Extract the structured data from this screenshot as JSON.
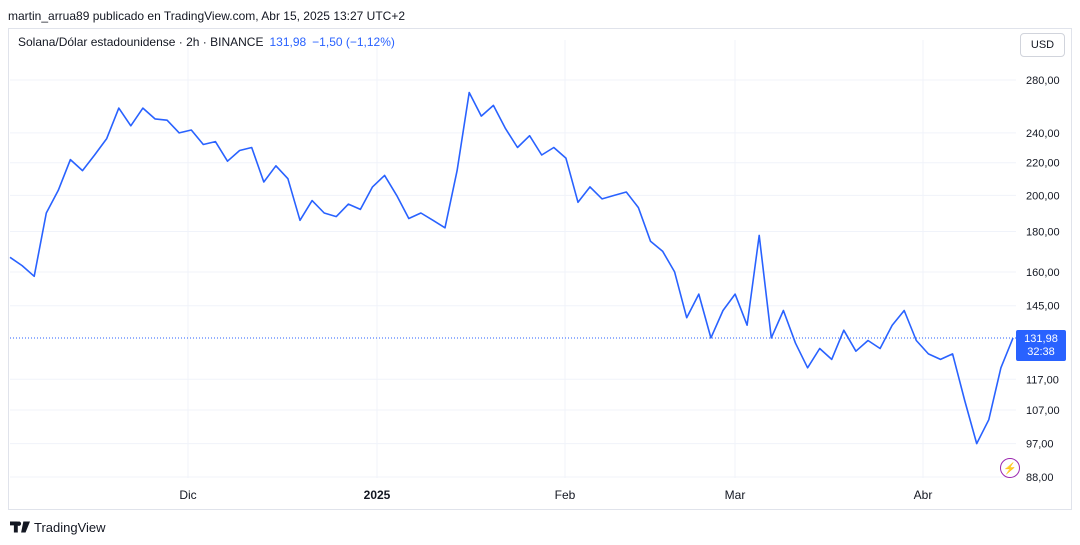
{
  "header": {
    "published": "martin_arrua89 publicado en TradingView.com, Abr 15, 2025 13:27 UTC+2"
  },
  "legend": {
    "symbol": "Solana/Dólar estadounidense · 2h · BINANCE",
    "last": "131,98",
    "change": "−1,50 (−1,12%)"
  },
  "currency_button": "USD",
  "price_tag": {
    "price": "131,98",
    "countdown": "32:38"
  },
  "footer": {
    "brand": "TradingView"
  },
  "colors": {
    "line": "#2962ff",
    "grid": "#f0f3fa",
    "text": "#131722",
    "accent": "#9c27b0"
  },
  "icons": {
    "alert": "lightning-icon",
    "logo": "tradingview-logo-icon"
  },
  "chart_data": {
    "type": "line",
    "scale": "log",
    "series": [
      {
        "values_note_free": true,
        "x": [
          "Oct 31",
          "Nov 2",
          "Nov 4",
          "Nov 6",
          "Nov 8",
          "Nov 10",
          "Nov 12",
          "Nov 14",
          "Nov 16",
          "Nov 18",
          "Nov 20",
          "Nov 22",
          "Nov 24",
          "Nov 26",
          "Nov 28",
          "Nov 30",
          "Dic 2",
          "Dic 4",
          "Dic 6",
          "Dic 8",
          "Dic 10",
          "Dic 12",
          "Dic 14",
          "Dic 16",
          "Dic 18",
          "Dic 20",
          "Dic 22",
          "Dic 24",
          "Dic 26",
          "Dic 28",
          "Dic 30",
          "Ene 1",
          "Ene 3",
          "Ene 5",
          "Ene 7",
          "Ene 9",
          "Ene 11",
          "Ene 13",
          "Ene 15",
          "Ene 17",
          "Ene 19",
          "Ene 21",
          "Ene 23",
          "Ene 25",
          "Ene 27",
          "Ene 29",
          "Ene 31",
          "Feb 2",
          "Feb 4",
          "Feb 6",
          "Feb 8",
          "Feb 10",
          "Feb 12",
          "Feb 14",
          "Feb 16",
          "Feb 18",
          "Feb 20",
          "Feb 22",
          "Feb 24",
          "Feb 26",
          "Feb 28",
          "Mar 2",
          "Mar 4",
          "Mar 6",
          "Mar 8",
          "Mar 10",
          "Mar 12",
          "Mar 14",
          "Mar 16",
          "Mar 18",
          "Mar 20",
          "Mar 22",
          "Mar 24",
          "Mar 26",
          "Mar 28",
          "Mar 30",
          "Abr 1",
          "Abr 3",
          "Abr 5",
          "Abr 7",
          "Abr 9",
          "Abr 11",
          "Abr 13",
          "Abr 15"
        ],
        "values": [
          167,
          163,
          158,
          190,
          203,
          222,
          215,
          225,
          236,
          258,
          245,
          258,
          250,
          249,
          240,
          242,
          232,
          234,
          221,
          228,
          230,
          208,
          218,
          210,
          186,
          197,
          190,
          188,
          195,
          192,
          205,
          212,
          200,
          187,
          190,
          186,
          182,
          215,
          270,
          252,
          260,
          243,
          230,
          238,
          225,
          230,
          223,
          196,
          205,
          198,
          200,
          202,
          193,
          175,
          170,
          160,
          140,
          150,
          132,
          143,
          150,
          137,
          178,
          132,
          143,
          130,
          121,
          128,
          124,
          135,
          127,
          131,
          128,
          137,
          143,
          131,
          126,
          124,
          126,
          110,
          97,
          104,
          121,
          131.98
        ]
      }
    ],
    "y_ticks": [
      "280,00",
      "240,00",
      "220,00",
      "200,00",
      "180,00",
      "160,00",
      "145,00",
      "117,00",
      "107,00",
      "97,00",
      "88,00"
    ],
    "x_ticks": [
      "Dic",
      "2025",
      "Feb",
      "Mar",
      "Abr"
    ],
    "ylim": [
      88,
      290
    ],
    "grid": true,
    "last_price_line": 131.98
  }
}
